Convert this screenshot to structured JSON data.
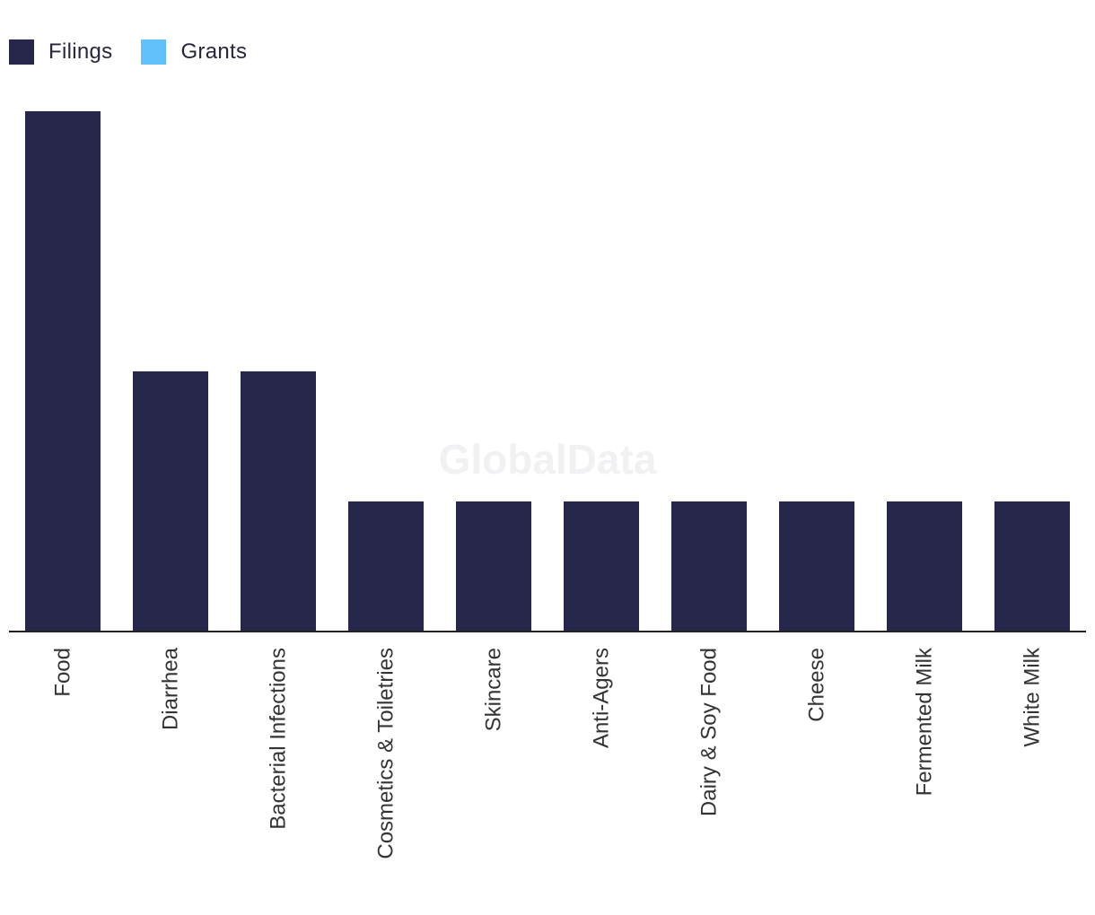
{
  "legend": {
    "items": [
      {
        "label": "Filings",
        "color": "#26274a"
      },
      {
        "label": "Grants",
        "color": "#62c0fb"
      }
    ]
  },
  "watermark": "GlobalData",
  "colors": {
    "bar": "#26274a",
    "axis": "#222222"
  },
  "chart_data": {
    "type": "bar",
    "categories": [
      "Food",
      "Diarrhea",
      "Bacterial Infections",
      "Cosmetics & Toiletries",
      "Skincare",
      "Anti-Agers",
      "Dairy & Soy Food",
      "Cheese",
      "Fermented Milk",
      "White Milk"
    ],
    "series": [
      {
        "name": "Filings",
        "values": [
          4,
          2,
          2,
          1,
          1,
          1,
          1,
          1,
          1,
          1
        ]
      },
      {
        "name": "Grants",
        "values": [
          0,
          0,
          0,
          0,
          0,
          0,
          0,
          0,
          0,
          0
        ]
      }
    ],
    "ylim": [
      0,
      4
    ],
    "grid": false,
    "legend_position": "top-left",
    "xlabel": "",
    "ylabel": ""
  }
}
